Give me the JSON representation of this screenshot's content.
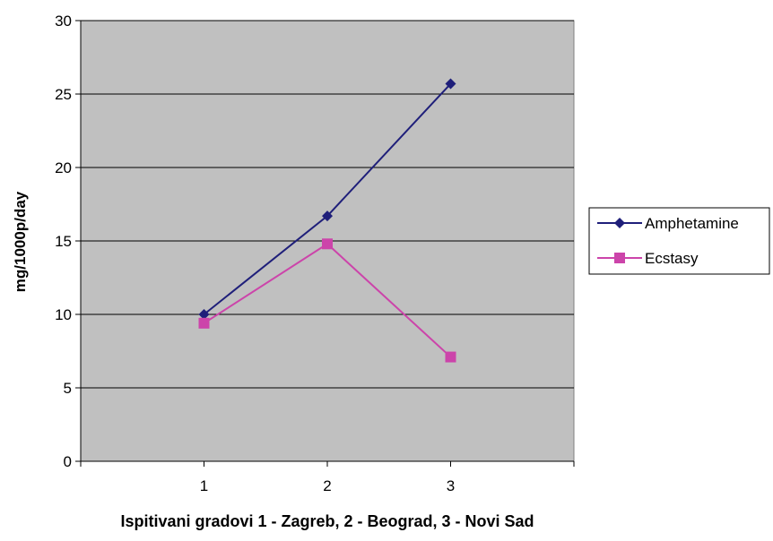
{
  "chart_data": {
    "type": "line",
    "title": "",
    "xlabel": "Ispitivani gradovi 1 - Zagreb, 2 - Beograd, 3 - Novi Sad",
    "ylabel": "mg/1000p/day",
    "categories": [
      "1",
      "2",
      "3"
    ],
    "ylim": [
      0,
      30
    ],
    "yticks": [
      0,
      5,
      10,
      15,
      20,
      25,
      30
    ],
    "grid": true,
    "legend_position": "right",
    "plot_background": "#c0c0c0",
    "series": [
      {
        "name": "Amphetamine",
        "values": [
          10.0,
          16.7,
          25.7
        ],
        "color": "#1f1f7a",
        "marker": "diamond"
      },
      {
        "name": "Ecstasy",
        "values": [
          9.4,
          14.8,
          7.1
        ],
        "color": "#cc44aa",
        "marker": "square"
      }
    ]
  }
}
